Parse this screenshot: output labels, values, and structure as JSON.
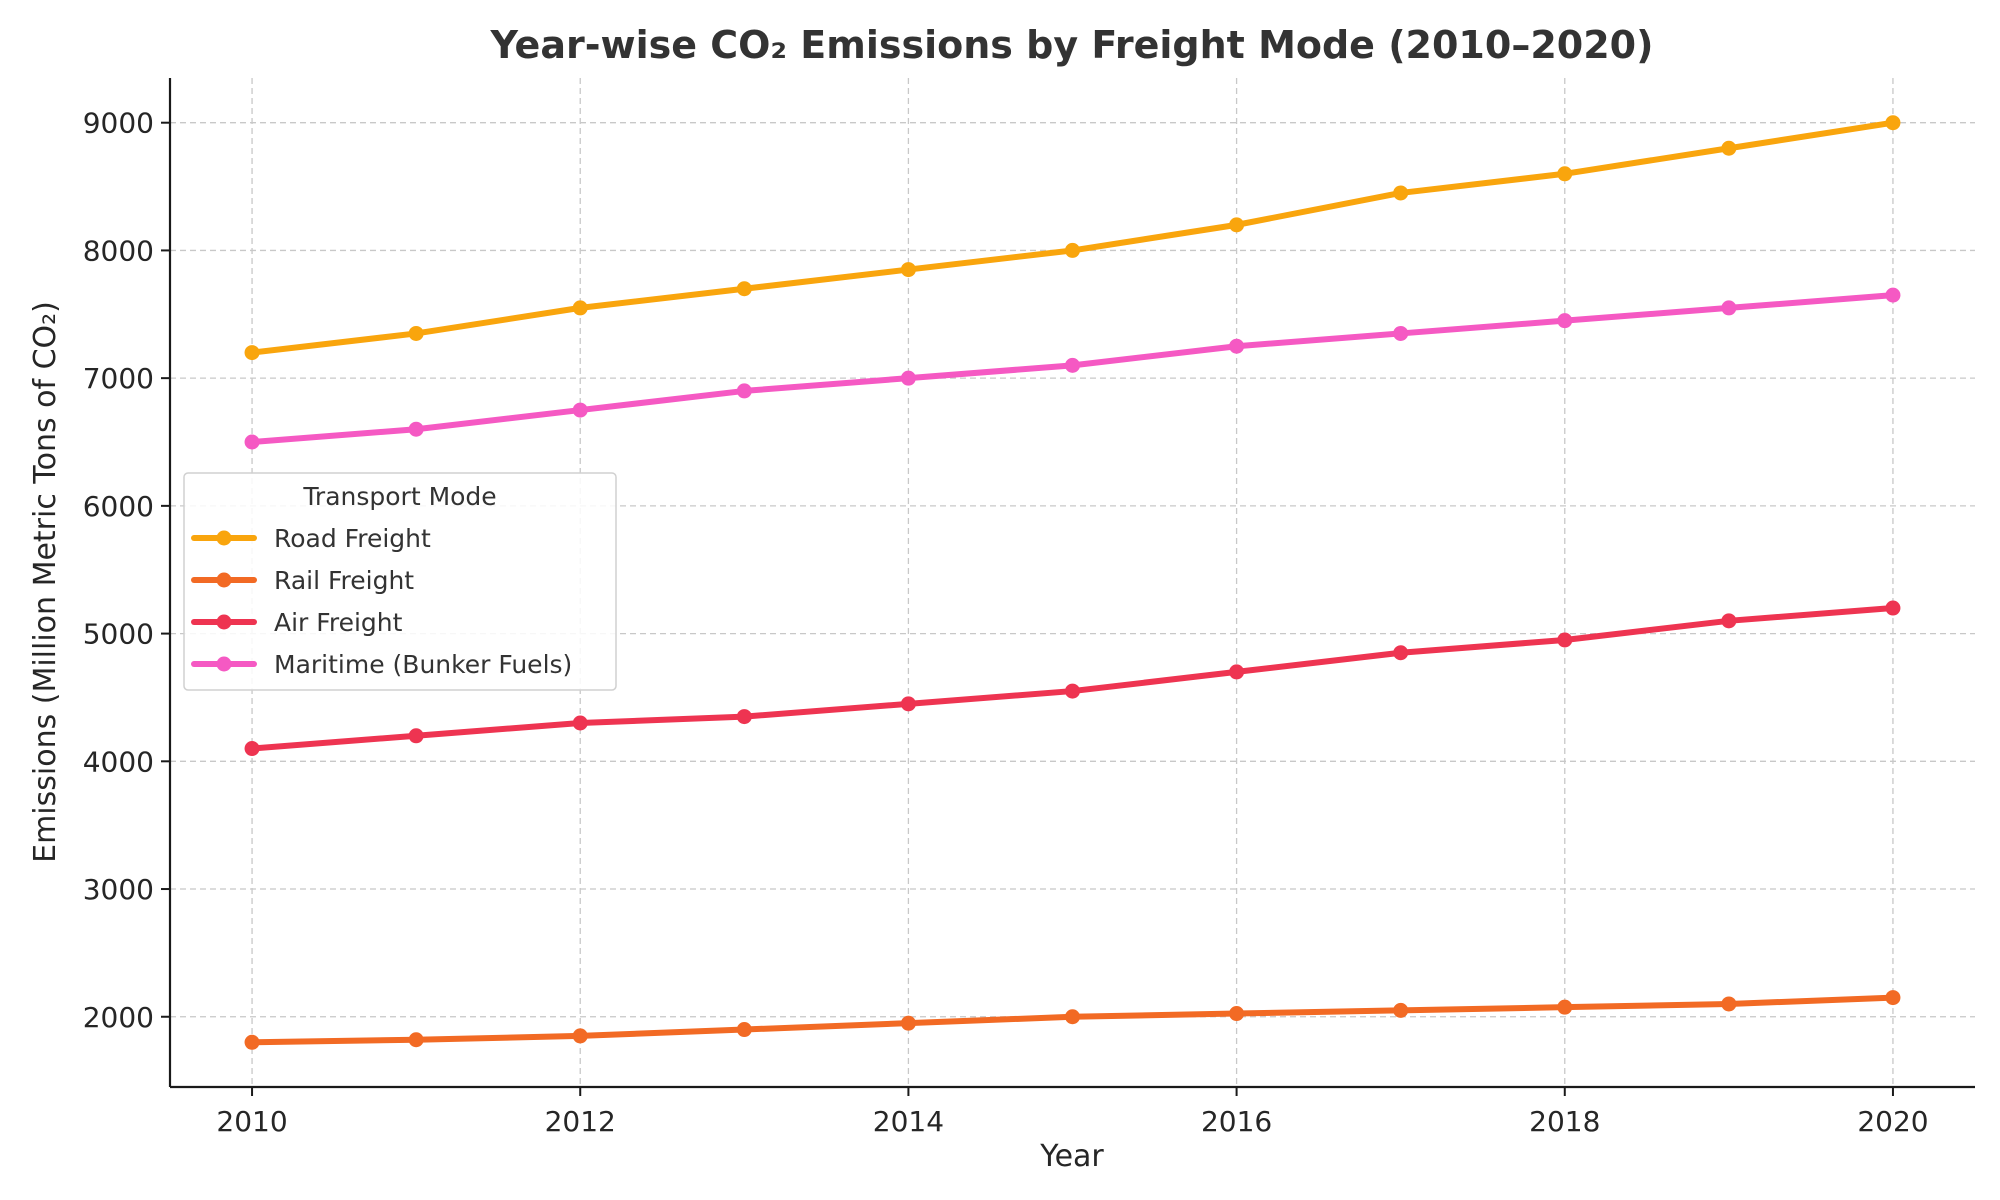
{
  "chart_data": {
    "type": "line",
    "title": "Year-wise CO₂ Emissions by Freight Mode (2010–2020)",
    "xlabel": "Year",
    "ylabel": "Emissions (Million Metric Tons of CO₂)",
    "x": [
      2010,
      2011,
      2012,
      2013,
      2014,
      2015,
      2016,
      2017,
      2018,
      2019,
      2020
    ],
    "xticks": [
      2010,
      2012,
      2014,
      2016,
      2018,
      2020
    ],
    "yticks": [
      2000,
      3000,
      4000,
      5000,
      6000,
      7000,
      8000,
      9000
    ],
    "xlim": [
      2009.5,
      2020.5
    ],
    "ylim": [
      1450,
      9350
    ],
    "grid": true,
    "legend": {
      "title": "Transport Mode",
      "placement": "center-left"
    },
    "series": [
      {
        "name": "Road Freight",
        "color": "#F9A50D",
        "values": [
          7200,
          7350,
          7550,
          7700,
          7850,
          8000,
          8200,
          8450,
          8600,
          8800,
          9000
        ]
      },
      {
        "name": "Rail Freight",
        "color": "#F26A24",
        "values": [
          1800,
          1820,
          1850,
          1900,
          1950,
          2000,
          2025,
          2050,
          2075,
          2100,
          2150
        ]
      },
      {
        "name": "Air Freight",
        "color": "#EE3451",
        "values": [
          4100,
          4200,
          4300,
          4350,
          4450,
          4550,
          4700,
          4850,
          4950,
          5100,
          5200
        ]
      },
      {
        "name": "Maritime (Bunker Fuels)",
        "color": "#F559C3",
        "values": [
          6500,
          6600,
          6750,
          6900,
          7000,
          7100,
          7250,
          7350,
          7450,
          7550,
          7650
        ]
      }
    ]
  }
}
